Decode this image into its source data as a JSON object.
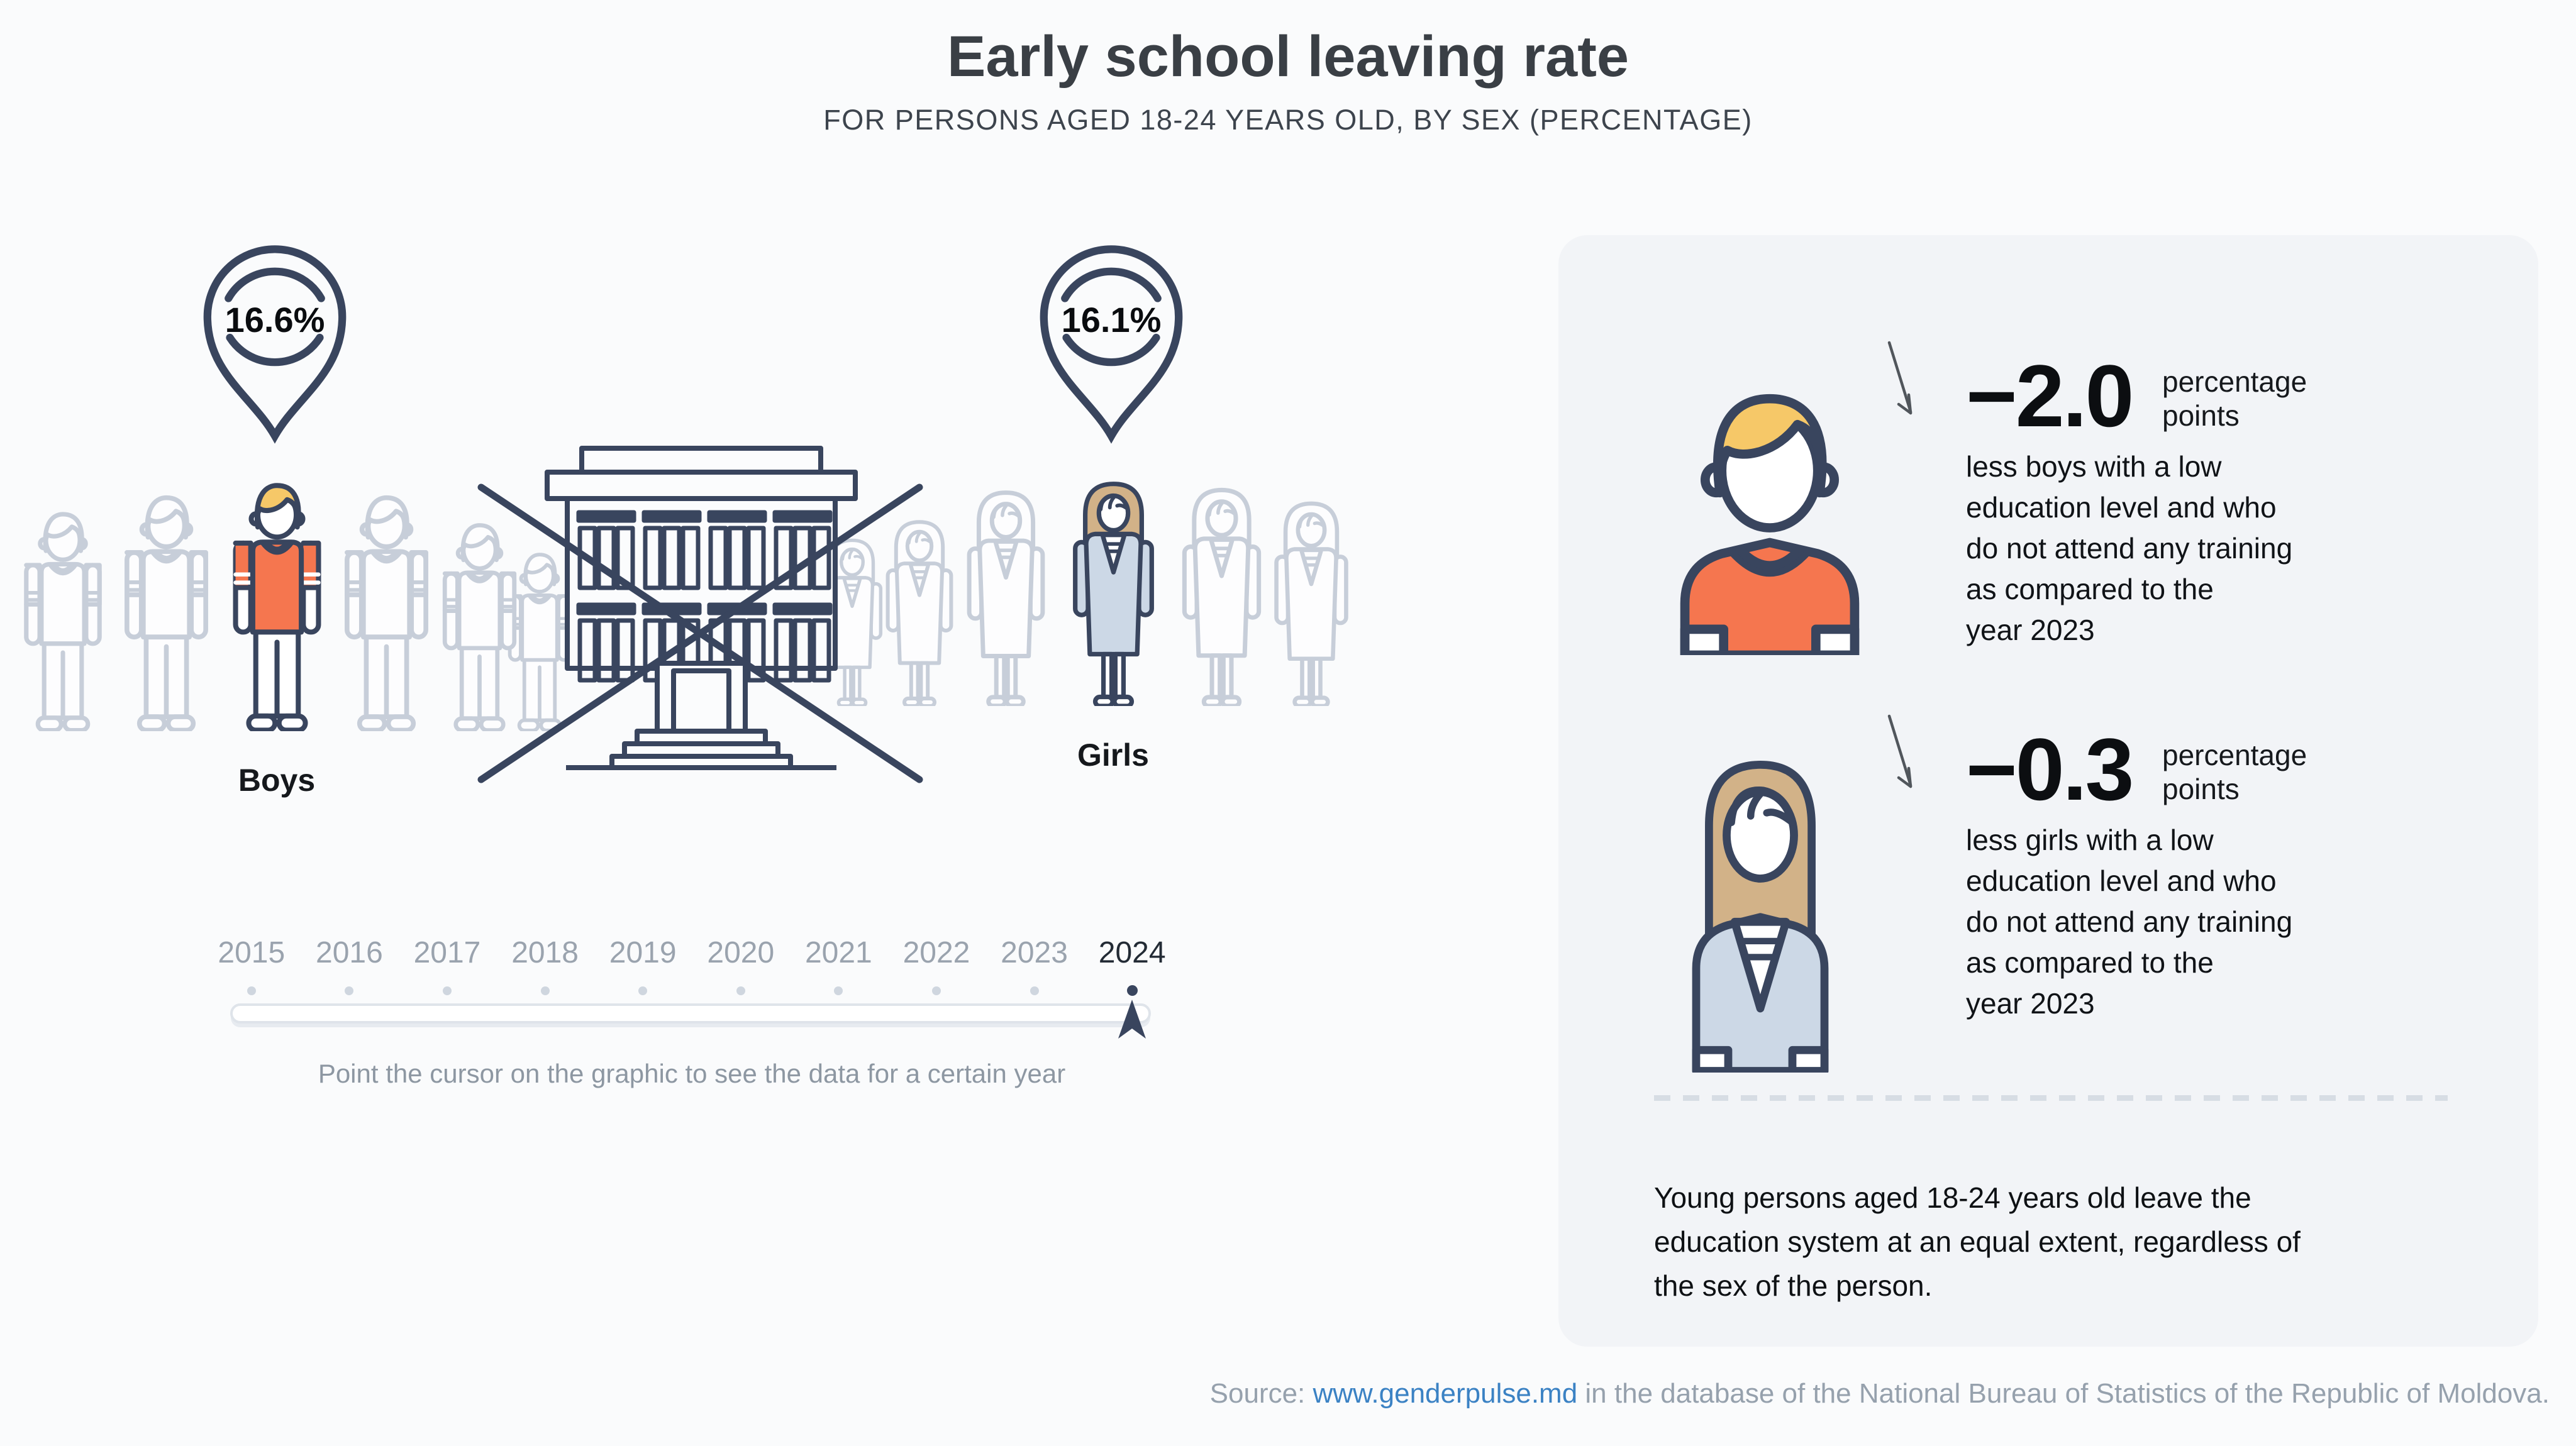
{
  "header": {
    "title": "Early school leaving rate",
    "subtitle": "FOR PERSONS AGED 18-24 YEARS OLD, BY SEX (PERCENTAGE)"
  },
  "chart_data": {
    "type": "pictogram-infographic",
    "title": "Early school leaving rate",
    "subtitle": "FOR PERSONS AGED 18-24 YEARS OLD, BY SEX (PERCENTAGE)",
    "year_shown": "2024",
    "categories": [
      "Boys",
      "Girls"
    ],
    "values": [
      16.6,
      16.1
    ],
    "units": "%",
    "change_vs_2023": {
      "boys": -2.0,
      "girls": -0.3
    }
  },
  "chart": {
    "groups": [
      {
        "id": "boys",
        "label": "Boys",
        "value": "16.6%"
      },
      {
        "id": "girls",
        "label": "Girls",
        "value": "16.1%"
      }
    ]
  },
  "timeline": {
    "years": [
      "2015",
      "2016",
      "2017",
      "2018",
      "2019",
      "2020",
      "2021",
      "2022",
      "2023",
      "2024"
    ],
    "selected_year": "2024",
    "hint": "Point the cursor on the graphic to see the data for a certain year"
  },
  "panel": {
    "stats": [
      {
        "value": "−2.0",
        "unit": "percentage\npoints",
        "description": "less boys with a low\neducation level and who\ndo not attend any training\nas compared to the\nyear 2023"
      },
      {
        "value": "−0.3",
        "unit": "percentage\npoints",
        "description": "less girls with a low\neducation level and who\ndo not attend any training\nas compared to the\nyear 2023"
      }
    ],
    "note": "Young persons aged 18-24 years old leave the\neducation system at an equal extent, regardless of\nthe sex of the person."
  },
  "source": {
    "prefix": "Source: ",
    "link_text": "www.genderpulse.md",
    "suffix": " in the database of the National Bureau of Statistics of the Republic of Moldova."
  },
  "colors": {
    "page_bg": "#fafbfc",
    "panel_bg": "#f2f4f7",
    "navy": "#39455e",
    "gray_outline": "#c7ced9",
    "orange": "#f5764f",
    "blond": "#f6c868",
    "tan_hair": "#d2b288",
    "blue_dress": "#ccd8e6",
    "link_blue": "#3b82c4",
    "year_gray": "#9aa3ae",
    "text_gray": "#8d97a2"
  }
}
